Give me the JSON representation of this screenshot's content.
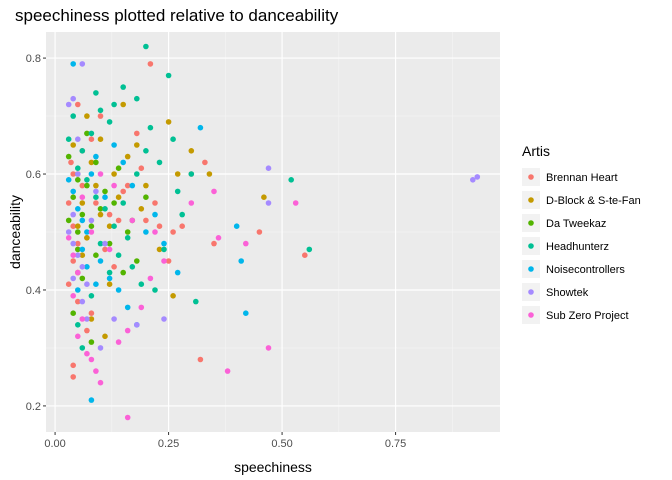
{
  "chart_data": {
    "type": "scatter",
    "title": "speechiness plotted relative to danceability",
    "xlabel": "speechiness",
    "ylabel": "danceability",
    "xlim": [
      -0.02,
      0.98
    ],
    "ylim": [
      0.155,
      0.845
    ],
    "x_ticks": [
      0.0,
      0.25,
      0.5,
      0.75
    ],
    "x_tick_labels": [
      "0.00",
      "0.25",
      "0.50",
      "0.75"
    ],
    "y_ticks": [
      0.2,
      0.4,
      0.6,
      0.8
    ],
    "y_tick_labels": [
      "0.2",
      "0.4",
      "0.6",
      "0.8"
    ],
    "grid": true,
    "legend_title": "Artis",
    "legend_position": "right",
    "series": [
      {
        "name": "Brennan Heart",
        "color": "#F8766D",
        "points": [
          [
            0.03,
            0.55
          ],
          [
            0.04,
            0.51
          ],
          [
            0.05,
            0.48
          ],
          [
            0.035,
            0.62
          ],
          [
            0.06,
            0.58
          ],
          [
            0.08,
            0.66
          ],
          [
            0.1,
            0.7
          ],
          [
            0.04,
            0.45
          ],
          [
            0.03,
            0.41
          ],
          [
            0.05,
            0.38
          ],
          [
            0.04,
            0.27
          ],
          [
            0.04,
            0.25
          ],
          [
            0.07,
            0.33
          ],
          [
            0.12,
            0.53
          ],
          [
            0.15,
            0.57
          ],
          [
            0.2,
            0.52
          ],
          [
            0.22,
            0.55
          ],
          [
            0.25,
            0.45
          ],
          [
            0.28,
            0.51
          ],
          [
            0.3,
            0.6
          ],
          [
            0.33,
            0.62
          ],
          [
            0.35,
            0.48
          ],
          [
            0.32,
            0.28
          ],
          [
            0.45,
            0.5
          ],
          [
            0.55,
            0.46
          ],
          [
            0.21,
            0.79
          ],
          [
            0.09,
            0.55
          ],
          [
            0.06,
            0.64
          ],
          [
            0.11,
            0.47
          ],
          [
            0.18,
            0.67
          ],
          [
            0.14,
            0.52
          ],
          [
            0.16,
            0.58
          ],
          [
            0.23,
            0.51
          ],
          [
            0.08,
            0.36
          ],
          [
            0.05,
            0.72
          ],
          [
            0.26,
            0.5
          ],
          [
            0.07,
            0.49
          ],
          [
            0.04,
            0.6
          ],
          [
            0.13,
            0.44
          ],
          [
            0.19,
            0.61
          ]
        ]
      },
      {
        "name": "D-Block & S-te-Fan",
        "color": "#C49A00",
        "points": [
          [
            0.04,
            0.65
          ],
          [
            0.05,
            0.6
          ],
          [
            0.06,
            0.55
          ],
          [
            0.07,
            0.49
          ],
          [
            0.05,
            0.43
          ],
          [
            0.08,
            0.62
          ],
          [
            0.09,
            0.58
          ],
          [
            0.1,
            0.53
          ],
          [
            0.12,
            0.51
          ],
          [
            0.13,
            0.6
          ],
          [
            0.15,
            0.72
          ],
          [
            0.18,
            0.65
          ],
          [
            0.2,
            0.58
          ],
          [
            0.25,
            0.69
          ],
          [
            0.27,
            0.6
          ],
          [
            0.3,
            0.64
          ],
          [
            0.34,
            0.6
          ],
          [
            0.46,
            0.56
          ],
          [
            0.26,
            0.39
          ],
          [
            0.23,
            0.47
          ],
          [
            0.11,
            0.32
          ],
          [
            0.08,
            0.35
          ],
          [
            0.06,
            0.46
          ],
          [
            0.14,
            0.56
          ],
          [
            0.16,
            0.63
          ],
          [
            0.05,
            0.51
          ],
          [
            0.1,
            0.66
          ],
          [
            0.12,
            0.41
          ],
          [
            0.19,
            0.54
          ],
          [
            0.07,
            0.7
          ]
        ]
      },
      {
        "name": "Da Tweekaz",
        "color": "#53B400",
        "points": [
          [
            0.03,
            0.52
          ],
          [
            0.04,
            0.56
          ],
          [
            0.05,
            0.5
          ],
          [
            0.06,
            0.53
          ],
          [
            0.07,
            0.58
          ],
          [
            0.05,
            0.47
          ],
          [
            0.08,
            0.51
          ],
          [
            0.09,
            0.62
          ],
          [
            0.11,
            0.57
          ],
          [
            0.12,
            0.48
          ],
          [
            0.14,
            0.61
          ],
          [
            0.16,
            0.5
          ],
          [
            0.18,
            0.45
          ],
          [
            0.06,
            0.42
          ],
          [
            0.04,
            0.36
          ],
          [
            0.08,
            0.31
          ],
          [
            0.1,
            0.54
          ],
          [
            0.07,
            0.67
          ],
          [
            0.13,
            0.55
          ],
          [
            0.15,
            0.43
          ],
          [
            0.05,
            0.59
          ],
          [
            0.09,
            0.46
          ],
          [
            0.2,
            0.56
          ],
          [
            0.03,
            0.63
          ],
          [
            0.17,
            0.52
          ]
        ]
      },
      {
        "name": "Headhunterz",
        "color": "#00C094",
        "points": [
          [
            0.2,
            0.82
          ],
          [
            0.25,
            0.77
          ],
          [
            0.15,
            0.75
          ],
          [
            0.18,
            0.73
          ],
          [
            0.1,
            0.71
          ],
          [
            0.12,
            0.69
          ],
          [
            0.08,
            0.67
          ],
          [
            0.06,
            0.64
          ],
          [
            0.05,
            0.61
          ],
          [
            0.07,
            0.59
          ],
          [
            0.09,
            0.56
          ],
          [
            0.11,
            0.54
          ],
          [
            0.13,
            0.51
          ],
          [
            0.16,
            0.49
          ],
          [
            0.14,
            0.46
          ],
          [
            0.17,
            0.44
          ],
          [
            0.19,
            0.41
          ],
          [
            0.22,
            0.4
          ],
          [
            0.24,
            0.47
          ],
          [
            0.27,
            0.57
          ],
          [
            0.3,
            0.6
          ],
          [
            0.31,
            0.38
          ],
          [
            0.52,
            0.59
          ],
          [
            0.56,
            0.47
          ],
          [
            0.04,
            0.7
          ],
          [
            0.21,
            0.68
          ],
          [
            0.26,
            0.66
          ],
          [
            0.23,
            0.62
          ],
          [
            0.28,
            0.53
          ],
          [
            0.1,
            0.48
          ],
          [
            0.12,
            0.43
          ],
          [
            0.08,
            0.39
          ],
          [
            0.05,
            0.34
          ],
          [
            0.06,
            0.3
          ],
          [
            0.15,
            0.55
          ],
          [
            0.18,
            0.6
          ],
          [
            0.03,
            0.66
          ],
          [
            0.09,
            0.74
          ],
          [
            0.13,
            0.72
          ],
          [
            0.2,
            0.64
          ]
        ]
      },
      {
        "name": "Noisecontrollers",
        "color": "#00B6EB",
        "points": [
          [
            0.04,
            0.79
          ],
          [
            0.03,
            0.59
          ],
          [
            0.04,
            0.57
          ],
          [
            0.05,
            0.54
          ],
          [
            0.06,
            0.52
          ],
          [
            0.07,
            0.5
          ],
          [
            0.08,
            0.6
          ],
          [
            0.09,
            0.63
          ],
          [
            0.1,
            0.45
          ],
          [
            0.12,
            0.42
          ],
          [
            0.14,
            0.4
          ],
          [
            0.16,
            0.37
          ],
          [
            0.18,
            0.34
          ],
          [
            0.2,
            0.5
          ],
          [
            0.22,
            0.53
          ],
          [
            0.32,
            0.68
          ],
          [
            0.4,
            0.51
          ],
          [
            0.41,
            0.45
          ],
          [
            0.42,
            0.36
          ],
          [
            0.08,
            0.21
          ],
          [
            0.06,
            0.47
          ],
          [
            0.11,
            0.56
          ],
          [
            0.13,
            0.65
          ],
          [
            0.15,
            0.62
          ],
          [
            0.05,
            0.4
          ],
          [
            0.07,
            0.44
          ],
          [
            0.09,
            0.41
          ],
          [
            0.17,
            0.58
          ],
          [
            0.24,
            0.48
          ],
          [
            0.27,
            0.43
          ]
        ]
      },
      {
        "name": "Showtek",
        "color": "#A58AFF",
        "points": [
          [
            0.03,
            0.72
          ],
          [
            0.04,
            0.73
          ],
          [
            0.06,
            0.79
          ],
          [
            0.05,
            0.6
          ],
          [
            0.04,
            0.48
          ],
          [
            0.05,
            0.46
          ],
          [
            0.06,
            0.44
          ],
          [
            0.07,
            0.41
          ],
          [
            0.04,
            0.53
          ],
          [
            0.03,
            0.5
          ],
          [
            0.08,
            0.52
          ],
          [
            0.1,
            0.3
          ],
          [
            0.13,
            0.35
          ],
          [
            0.18,
            0.34
          ],
          [
            0.24,
            0.35
          ],
          [
            0.47,
            0.61
          ],
          [
            0.47,
            0.55
          ],
          [
            0.92,
            0.59
          ],
          [
            0.93,
            0.595
          ],
          [
            0.06,
            0.38
          ],
          [
            0.09,
            0.57
          ],
          [
            0.05,
            0.66
          ],
          [
            0.11,
            0.48
          ],
          [
            0.07,
            0.35
          ],
          [
            0.04,
            0.42
          ]
        ]
      },
      {
        "name": "Sub Zero Project",
        "color": "#FB61D7",
        "points": [
          [
            0.03,
            0.49
          ],
          [
            0.04,
            0.46
          ],
          [
            0.05,
            0.43
          ],
          [
            0.04,
            0.39
          ],
          [
            0.06,
            0.35
          ],
          [
            0.05,
            0.32
          ],
          [
            0.07,
            0.29
          ],
          [
            0.09,
            0.26
          ],
          [
            0.1,
            0.24
          ],
          [
            0.08,
            0.28
          ],
          [
            0.14,
            0.31
          ],
          [
            0.16,
            0.33
          ],
          [
            0.19,
            0.37
          ],
          [
            0.21,
            0.42
          ],
          [
            0.24,
            0.45
          ],
          [
            0.3,
            0.55
          ],
          [
            0.38,
            0.26
          ],
          [
            0.47,
            0.3
          ],
          [
            0.36,
            0.49
          ],
          [
            0.42,
            0.48
          ],
          [
            0.35,
            0.57
          ],
          [
            0.53,
            0.55
          ],
          [
            0.16,
            0.18
          ],
          [
            0.12,
            0.47
          ],
          [
            0.06,
            0.56
          ],
          [
            0.08,
            0.5
          ],
          [
            0.1,
            0.6
          ],
          [
            0.13,
            0.58
          ],
          [
            0.17,
            0.52
          ],
          [
            0.22,
            0.5
          ]
        ]
      }
    ]
  }
}
